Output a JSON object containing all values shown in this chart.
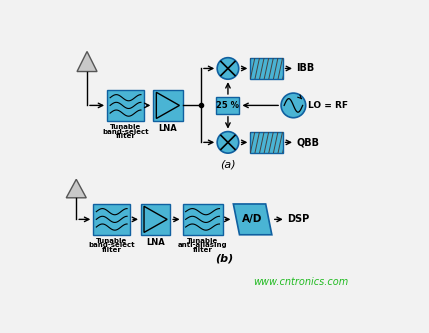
{
  "bg_color": "#f2f2f2",
  "box_color": "#4ab4d4",
  "box_edge": "#1060a0",
  "text_color": "black",
  "watermark": "www.cntronics.com",
  "watermark_color": "#22bb22",
  "label_a": "(a)",
  "label_b": "(b)"
}
